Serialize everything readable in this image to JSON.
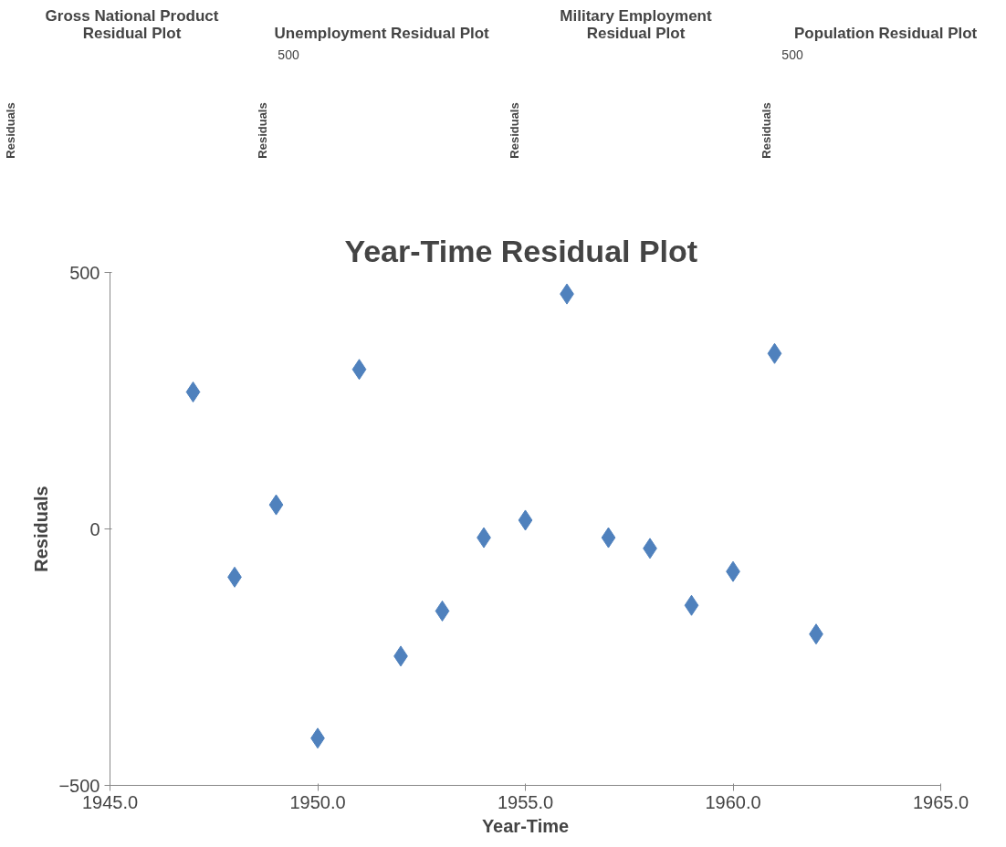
{
  "chart_data": [
    {
      "type": "other",
      "title": "Gross National Product\nResidual Plot",
      "ylabel": "Residuals"
    },
    {
      "type": "other",
      "title": "Unemployment  Residual Plot",
      "ylabel": "Residuals",
      "annotations": [
        "500"
      ]
    },
    {
      "type": "other",
      "title": "Military Employment\nResidual Plot",
      "ylabel": "Residuals"
    },
    {
      "type": "other",
      "title": "Population  Residual Plot",
      "ylabel": "Residuals",
      "annotations": [
        "500"
      ]
    },
    {
      "type": "scatter",
      "title": "Year-Time  Residual Plot",
      "xlabel": "Year-Time",
      "ylabel": "Residuals",
      "x": [
        1947,
        1948,
        1949,
        1950,
        1951,
        1952,
        1953,
        1954,
        1955,
        1956,
        1957,
        1958,
        1959,
        1960,
        1961,
        1962
      ],
      "series": [
        {
          "color": "#4f81bd",
          "values": [
            267,
            -94,
            47,
            -408,
            311,
            -248,
            -160,
            -17,
            17,
            458,
            -17,
            -38,
            -149,
            -83,
            342,
            -205
          ]
        }
      ],
      "xlim": [
        1945,
        1965
      ],
      "ylim": [
        -500,
        500
      ],
      "xticks": [
        {
          "value": 1945,
          "label": "1945.0"
        },
        {
          "value": 1950,
          "label": "1950.0"
        },
        {
          "value": 1955,
          "label": "1955.0"
        },
        {
          "value": 1960,
          "label": "1960.0"
        },
        {
          "value": 1965,
          "label": "1965.0"
        }
      ],
      "yticks": [
        -500,
        0,
        500
      ],
      "marker": "diamond",
      "grid": false
    }
  ]
}
